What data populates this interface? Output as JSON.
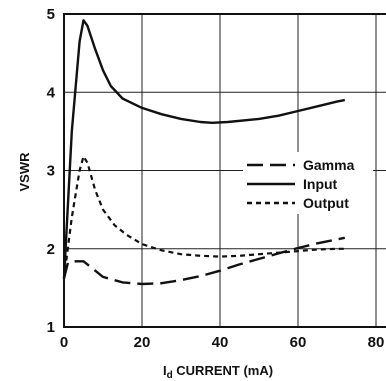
{
  "chart_data": {
    "type": "line",
    "xlabel_main": "I",
    "xlabel_sub": "d",
    "xlabel_rest": " CURRENT (mA)",
    "ylabel": "VSWR",
    "xlim": [
      0,
      80
    ],
    "ylim": [
      1,
      5
    ],
    "x_ticks": [
      "0",
      "20",
      "40",
      "60",
      "80"
    ],
    "y_ticks": [
      "1",
      "2",
      "3",
      "4",
      "5"
    ],
    "grid": true,
    "legend_position": "right",
    "series": [
      {
        "name": "Gamma",
        "dash": "long-dash",
        "points": [
          [
            0,
            1.62
          ],
          [
            1,
            1.82
          ],
          [
            3,
            1.84
          ],
          [
            5,
            1.84
          ],
          [
            7,
            1.76
          ],
          [
            10,
            1.64
          ],
          [
            15,
            1.57
          ],
          [
            20,
            1.55
          ],
          [
            25,
            1.56
          ],
          [
            30,
            1.6
          ],
          [
            35,
            1.65
          ],
          [
            40,
            1.72
          ],
          [
            45,
            1.8
          ],
          [
            50,
            1.87
          ],
          [
            55,
            1.94
          ],
          [
            60,
            2.01
          ],
          [
            65,
            2.07
          ],
          [
            70,
            2.12
          ],
          [
            72,
            2.14
          ]
        ]
      },
      {
        "name": "Input",
        "dash": "solid",
        "points": [
          [
            0,
            1.62
          ],
          [
            2,
            3.5
          ],
          [
            4,
            4.65
          ],
          [
            5,
            4.92
          ],
          [
            6,
            4.85
          ],
          [
            8,
            4.55
          ],
          [
            10,
            4.28
          ],
          [
            12,
            4.08
          ],
          [
            15,
            3.92
          ],
          [
            20,
            3.8
          ],
          [
            25,
            3.72
          ],
          [
            30,
            3.66
          ],
          [
            35,
            3.62
          ],
          [
            38,
            3.61
          ],
          [
            42,
            3.62
          ],
          [
            50,
            3.66
          ],
          [
            55,
            3.7
          ],
          [
            60,
            3.76
          ],
          [
            65,
            3.82
          ],
          [
            70,
            3.88
          ],
          [
            72,
            3.9
          ]
        ]
      },
      {
        "name": "Output",
        "dash": "short-dash",
        "points": [
          [
            0,
            1.62
          ],
          [
            2,
            2.4
          ],
          [
            4,
            3.0
          ],
          [
            5,
            3.18
          ],
          [
            6,
            3.1
          ],
          [
            8,
            2.75
          ],
          [
            10,
            2.5
          ],
          [
            13,
            2.3
          ],
          [
            16,
            2.18
          ],
          [
            20,
            2.06
          ],
          [
            25,
            1.98
          ],
          [
            30,
            1.93
          ],
          [
            35,
            1.91
          ],
          [
            40,
            1.9
          ],
          [
            45,
            1.91
          ],
          [
            50,
            1.93
          ],
          [
            55,
            1.95
          ],
          [
            60,
            1.97
          ],
          [
            65,
            1.99
          ],
          [
            70,
            2.0
          ],
          [
            72,
            2.0
          ]
        ]
      }
    ]
  }
}
